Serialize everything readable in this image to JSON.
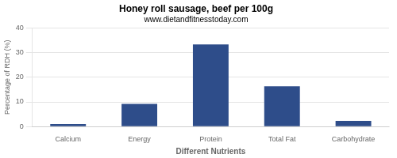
{
  "chart_data": {
    "type": "bar",
    "title": "Honey roll sausage, beef per 100g",
    "subtitle": "www.dietandfitnesstoday.com",
    "xlabel": "Different Nutrients",
    "ylabel": "Percentage of RDH (%)",
    "categories": [
      "Calcium",
      "Energy",
      "Protein",
      "Total Fat",
      "Carbohydrate"
    ],
    "values": [
      1.0,
      9.2,
      33.3,
      16.3,
      2.3
    ],
    "color": "#2e4d8a",
    "ylim": [
      0,
      40
    ],
    "yticks": [
      0,
      10,
      20,
      30,
      40
    ],
    "grid": true
  }
}
